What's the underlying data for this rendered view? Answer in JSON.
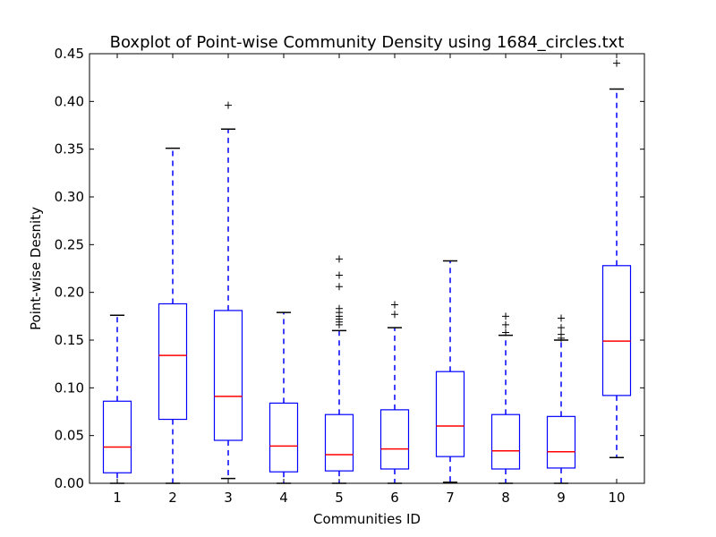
{
  "chart_data": {
    "type": "boxplot",
    "title": "Boxplot of Point-wise Community Density using 1684_circles.txt",
    "xlabel": "Communities ID",
    "ylabel": "Point-wise Desnity",
    "ylim": [
      0,
      0.45
    ],
    "yticks": [
      "0.00",
      "0.05",
      "0.10",
      "0.15",
      "0.20",
      "0.25",
      "0.30",
      "0.35",
      "0.40",
      "0.45"
    ],
    "grid": false,
    "colors": {
      "box": "#0000ff",
      "median": "#ff0000",
      "whisker": "#0000ff",
      "cap": "#000000",
      "flier": "#000000"
    },
    "categories": [
      "1",
      "2",
      "3",
      "4",
      "5",
      "6",
      "7",
      "8",
      "9",
      "10"
    ],
    "boxes": [
      {
        "id": "1",
        "whisker_low": 0.0,
        "q1": 0.011,
        "median": 0.038,
        "q3": 0.086,
        "whisker_high": 0.176,
        "fliers": []
      },
      {
        "id": "2",
        "whisker_low": 0.0,
        "q1": 0.067,
        "median": 0.134,
        "q3": 0.188,
        "whisker_high": 0.351,
        "fliers": []
      },
      {
        "id": "3",
        "whisker_low": 0.005,
        "q1": 0.045,
        "median": 0.091,
        "q3": 0.181,
        "whisker_high": 0.371,
        "fliers": [
          0.396
        ]
      },
      {
        "id": "4",
        "whisker_low": 0.0,
        "q1": 0.012,
        "median": 0.039,
        "q3": 0.084,
        "whisker_high": 0.179,
        "fliers": []
      },
      {
        "id": "5",
        "whisker_low": 0.0,
        "q1": 0.013,
        "median": 0.03,
        "q3": 0.072,
        "whisker_high": 0.16,
        "fliers": [
          0.166,
          0.169,
          0.172,
          0.175,
          0.179,
          0.183,
          0.206,
          0.218,
          0.235
        ]
      },
      {
        "id": "6",
        "whisker_low": 0.0,
        "q1": 0.015,
        "median": 0.036,
        "q3": 0.077,
        "whisker_high": 0.163,
        "fliers": [
          0.177,
          0.187
        ]
      },
      {
        "id": "7",
        "whisker_low": 0.001,
        "q1": 0.028,
        "median": 0.06,
        "q3": 0.117,
        "whisker_high": 0.233,
        "fliers": []
      },
      {
        "id": "8",
        "whisker_low": 0.0,
        "q1": 0.015,
        "median": 0.034,
        "q3": 0.072,
        "whisker_high": 0.155,
        "fliers": [
          0.158,
          0.166,
          0.175
        ]
      },
      {
        "id": "9",
        "whisker_low": 0.0,
        "q1": 0.016,
        "median": 0.033,
        "q3": 0.07,
        "whisker_high": 0.15,
        "fliers": [
          0.152,
          0.156,
          0.163,
          0.173
        ]
      },
      {
        "id": "10",
        "whisker_low": 0.027,
        "q1": 0.092,
        "median": 0.149,
        "q3": 0.228,
        "whisker_high": 0.413,
        "fliers": [
          0.44
        ]
      }
    ]
  }
}
